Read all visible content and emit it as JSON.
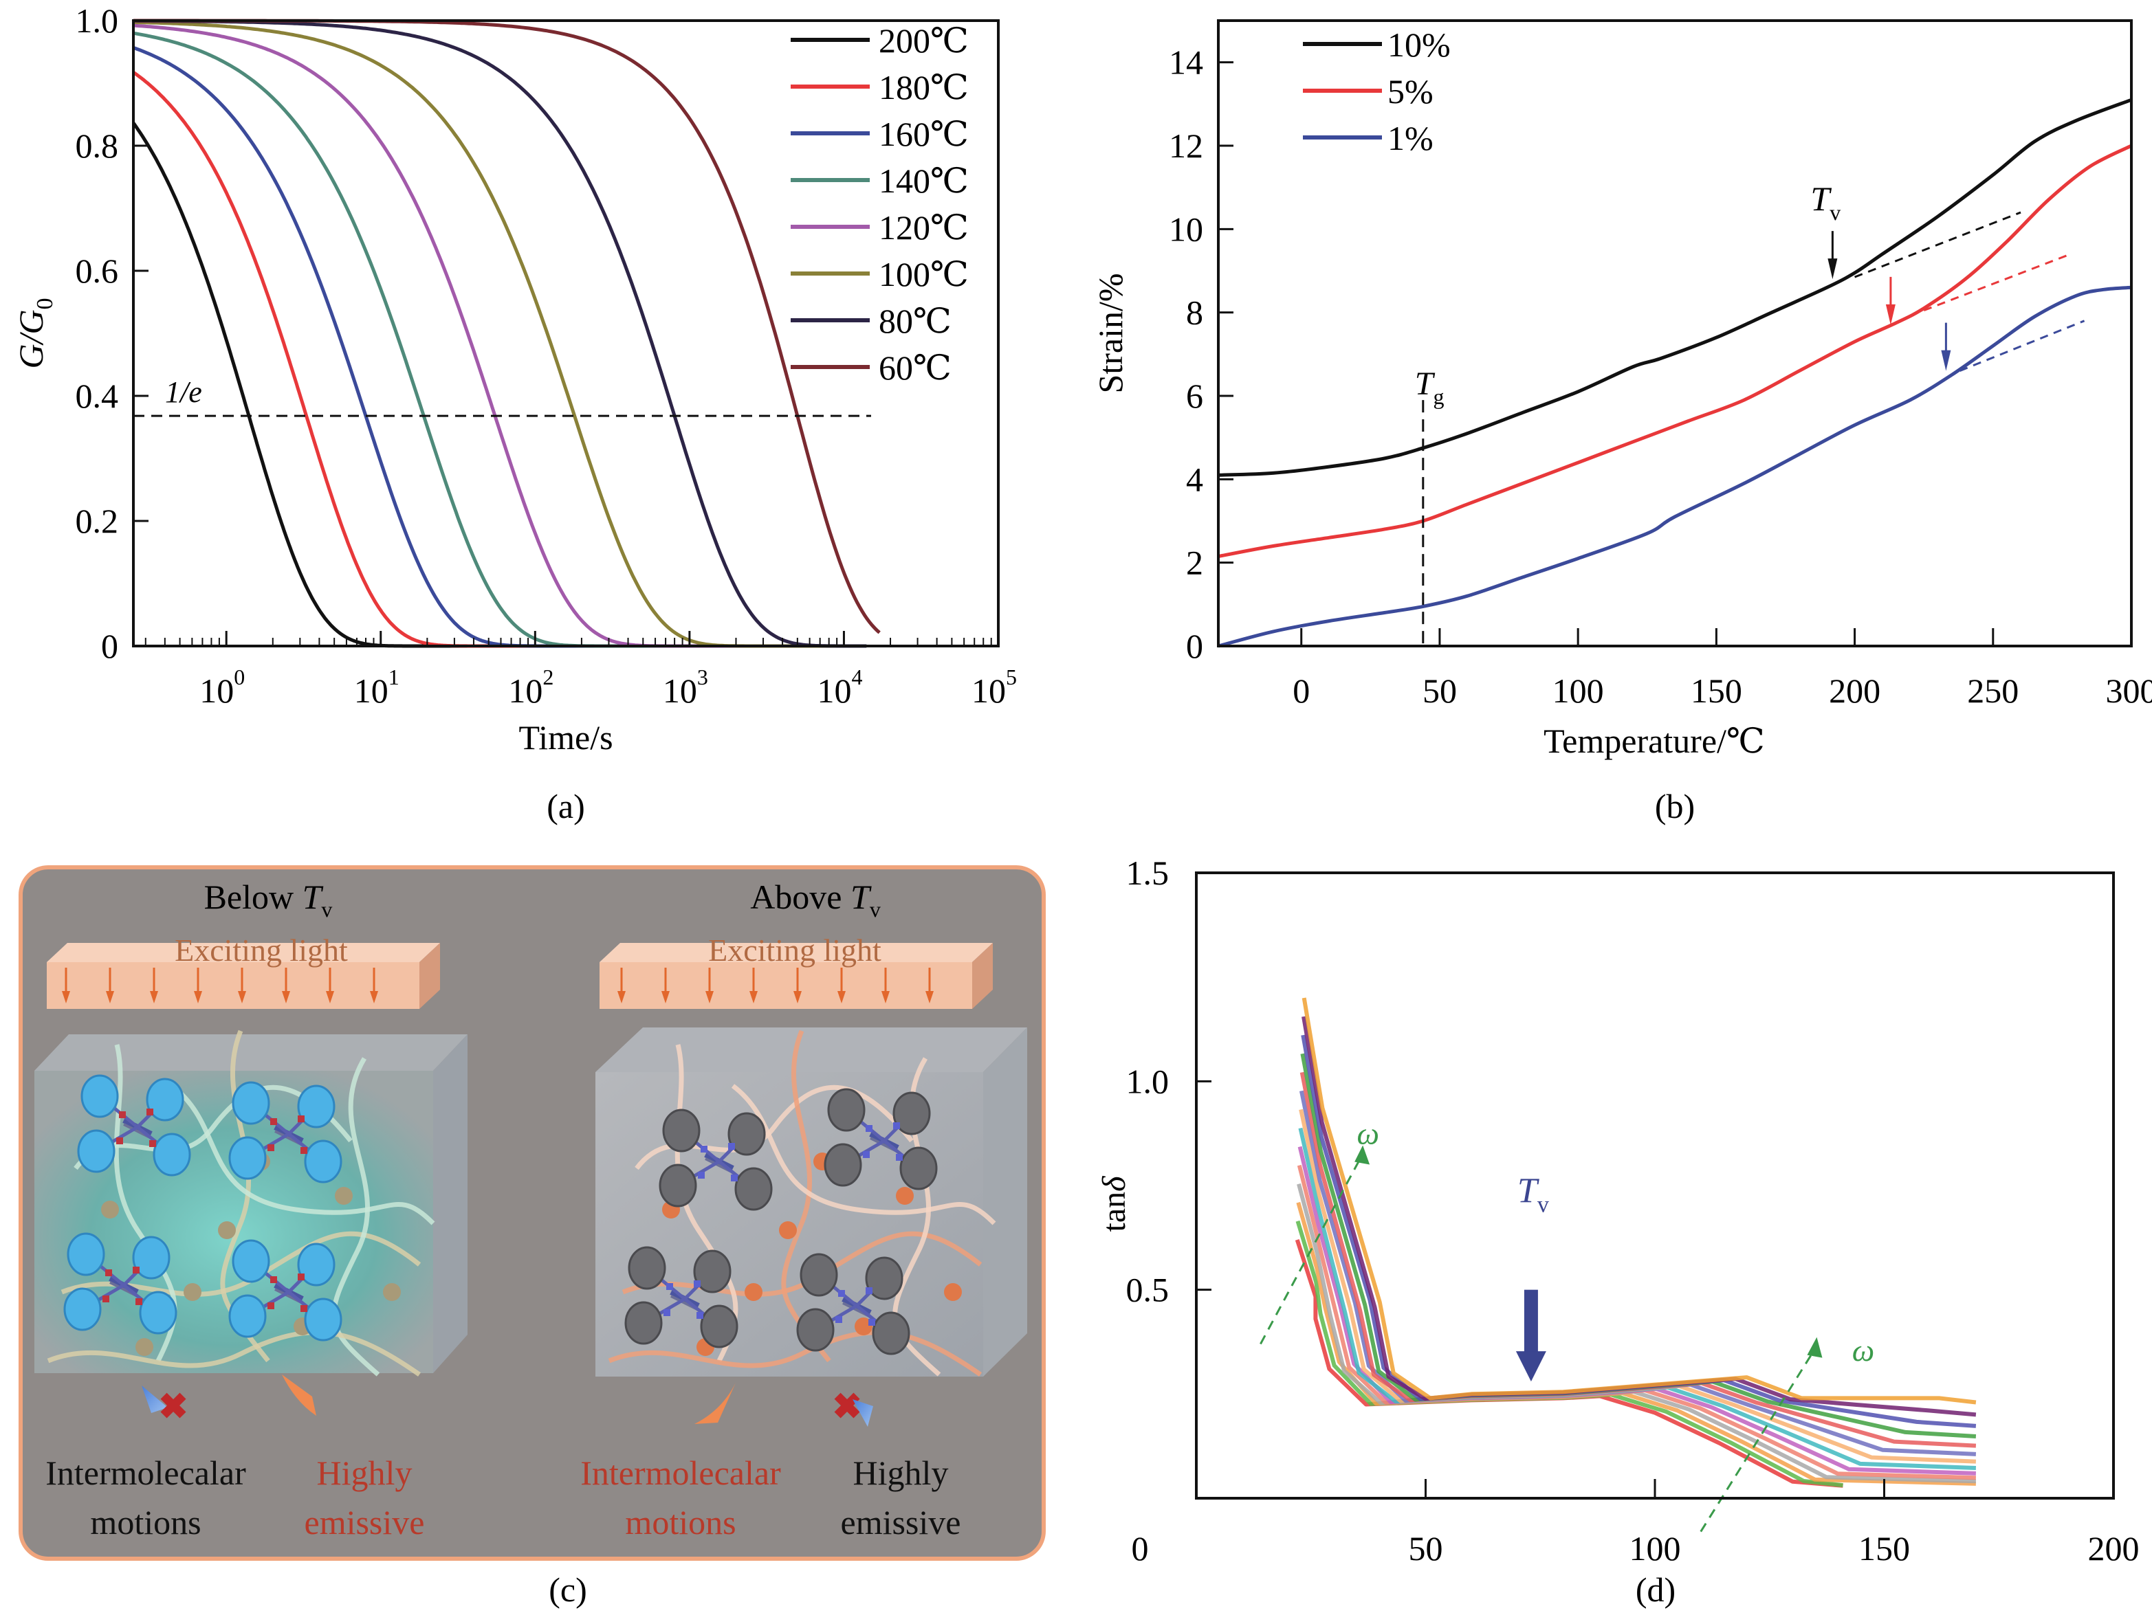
{
  "colors": {
    "axis": "#111111",
    "panel_c_bg": "#8f8a88",
    "panel_c_border": "#f0a47c",
    "light_bar": "#f3c1a4",
    "light_text": "#b06a43",
    "light_arrow": "#e2672c",
    "caption_red": "#b83a2a",
    "tv_blue": "#3b4590",
    "omega_green": "#3a9a4a"
  },
  "chart_data": [
    {
      "id": "a",
      "type": "line",
      "caption": "(a)",
      "xlabel": "Time/s",
      "ylabel_main": "G/G",
      "ylabel_sub": "0",
      "xscale": "log",
      "xlim": [
        0.25,
        100000
      ],
      "ylim": [
        0,
        1.0
      ],
      "xticks": [
        {
          "base": "10",
          "exp": "0",
          "value": 1
        },
        {
          "base": "10",
          "exp": "1",
          "value": 10
        },
        {
          "base": "10",
          "exp": "2",
          "value": 100
        },
        {
          "base": "10",
          "exp": "3",
          "value": 1000
        },
        {
          "base": "10",
          "exp": "4",
          "value": 10000
        },
        {
          "base": "10",
          "exp": "5",
          "value": 100000
        }
      ],
      "yticks": [
        {
          "label": "0",
          "value": 0
        },
        {
          "label": "0.2",
          "value": 0.2
        },
        {
          "label": "0.4",
          "value": 0.4
        },
        {
          "label": "0.6",
          "value": 0.6
        },
        {
          "label": "0.8",
          "value": 0.8
        },
        {
          "label": "1.0",
          "value": 1.0
        }
      ],
      "reference_line": {
        "label": "1/e",
        "value": 0.368,
        "x_end": 15000
      },
      "series": [
        {
          "name": "200℃",
          "color": "#111111",
          "tau": 1.4,
          "beta": 1.0,
          "t_end": 60
        },
        {
          "name": "180℃",
          "color": "#e8383a",
          "tau": 3.3,
          "beta": 0.95,
          "t_end": 150
        },
        {
          "name": "160℃",
          "color": "#3b4a9a",
          "tau": 8.0,
          "beta": 0.9,
          "t_end": 400
        },
        {
          "name": "140℃",
          "color": "#4e8a7a",
          "tau": 19,
          "beta": 0.9,
          "t_end": 1000
        },
        {
          "name": "120℃",
          "color": "#a25aaa",
          "tau": 55,
          "beta": 0.9,
          "t_end": 3000
        },
        {
          "name": "100℃",
          "color": "#8a8138",
          "tau": 180,
          "beta": 0.9,
          "t_end": 9000
        },
        {
          "name": "80℃",
          "color": "#2c2446",
          "tau": 800,
          "beta": 0.95,
          "t_end": 14000
        },
        {
          "name": "60℃",
          "color": "#7a2a30",
          "tau": 5000,
          "beta": 1.1,
          "t_end": 17000
        }
      ]
    },
    {
      "id": "b",
      "type": "line",
      "caption": "(b)",
      "xlabel": "Temperature/℃",
      "ylabel": "Strain/%",
      "xlim": [
        -30,
        300
      ],
      "ylim": [
        0,
        15
      ],
      "xticks": [
        0,
        50,
        100,
        150,
        200,
        250,
        300
      ],
      "yticks": [
        0,
        2,
        4,
        6,
        8,
        10,
        12,
        14
      ],
      "annotations": {
        "tg_label_main": "T",
        "tg_label_sub": "g",
        "tg_value": 44,
        "tv_label_main": "T",
        "tv_label_sub": "v"
      },
      "series": [
        {
          "name": "10%",
          "color": "#111111",
          "x": [
            -30,
            -10,
            10,
            30,
            44,
            60,
            80,
            100,
            120,
            130,
            150,
            170,
            190,
            200,
            210,
            230,
            250,
            265,
            280,
            300
          ],
          "y": [
            4.1,
            4.15,
            4.3,
            4.5,
            4.75,
            5.1,
            5.6,
            6.1,
            6.7,
            6.9,
            7.4,
            8.0,
            8.6,
            8.95,
            9.4,
            10.3,
            11.3,
            12.1,
            12.6,
            13.1
          ],
          "tv": 192,
          "tv_arrow_y": 8.8,
          "tangent": {
            "x": [
              200,
              260
            ],
            "y": [
              8.85,
              10.4
            ]
          }
        },
        {
          "name": "5%",
          "color": "#e8383a",
          "x": [
            -30,
            -10,
            10,
            30,
            44,
            60,
            80,
            100,
            120,
            140,
            160,
            180,
            200,
            215,
            225,
            240,
            255,
            270,
            285,
            300
          ],
          "y": [
            2.15,
            2.4,
            2.6,
            2.8,
            3.0,
            3.4,
            3.9,
            4.4,
            4.9,
            5.4,
            5.9,
            6.6,
            7.3,
            7.75,
            8.1,
            8.8,
            9.7,
            10.7,
            11.5,
            12.0
          ],
          "tv": 213,
          "tv_arrow_y": 7.7,
          "tangent": {
            "x": [
              225,
              278
            ],
            "y": [
              8.05,
              9.4
            ]
          }
        },
        {
          "name": "1%",
          "color": "#3b4a9a",
          "x": [
            -30,
            -10,
            10,
            30,
            44,
            60,
            80,
            100,
            125,
            135,
            160,
            180,
            200,
            220,
            235,
            250,
            265,
            280,
            290,
            300
          ],
          "y": [
            0,
            0.35,
            0.6,
            0.8,
            0.95,
            1.2,
            1.65,
            2.1,
            2.7,
            3.1,
            3.9,
            4.6,
            5.3,
            5.9,
            6.5,
            7.2,
            7.9,
            8.4,
            8.55,
            8.6
          ],
          "tv": 233,
          "tv_arrow_y": 6.6,
          "tangent": {
            "x": [
              238,
              283
            ],
            "y": [
              6.6,
              7.8
            ]
          }
        }
      ]
    },
    {
      "id": "d",
      "type": "line",
      "caption": "(d)",
      "ylabel_main": "tan",
      "ylabel_italic": "δ",
      "xlim": [
        0,
        200
      ],
      "ylim": [
        0,
        1.5
      ],
      "ylim_visible_floor": 0.02,
      "xticks": [
        0,
        50,
        100,
        150,
        200
      ],
      "yticks": [
        {
          "label": "0.5",
          "value": 0.5
        },
        {
          "label": "1.0",
          "value": 1.0
        },
        {
          "label": "1.5",
          "value": 1.5
        }
      ],
      "annotations": {
        "tv_label_main": "T",
        "tv_label_sub": "v",
        "tv_arrow_x": 73,
        "tv_arrow_from": 0.5,
        "tv_arrow_to": 0.28,
        "omega_label": "ω"
      },
      "series_count": 14,
      "series_colors": [
        "#e8383a",
        "#5cb84a",
        "#f5a04a",
        "#a8a8a8",
        "#f08070",
        "#c060c0",
        "#40b8c0",
        "#f8b070",
        "#7070c0",
        "#e85a5a",
        "#40a040",
        "#5050b0",
        "#702070",
        "#f0a030"
      ],
      "series_note": "frequency sweep curves; peak near 20–25, plateau ~0.24 between 50–95, drop after 100 shifting to higher T with increasing ω"
    }
  ],
  "panel_c": {
    "caption": "(c)",
    "left": {
      "title_main": "Below ",
      "title_italic": "T",
      "title_sub": "v",
      "light_label": "Exciting light",
      "caption1_line1": "Intermolecalar",
      "caption1_line2": "motions",
      "caption1_color": "black",
      "caption2_line1": "Highly",
      "caption2_line2": "emissive",
      "caption2_color": "red"
    },
    "right": {
      "title_main": "Above ",
      "title_italic": "T",
      "title_sub": "v",
      "light_label": "Exciting light",
      "caption1_line1": "Intermolecalar",
      "caption1_line2": "motions",
      "caption1_color": "red",
      "caption2_line1": "Highly",
      "caption2_line2": "emissive",
      "caption2_color": "black"
    }
  }
}
